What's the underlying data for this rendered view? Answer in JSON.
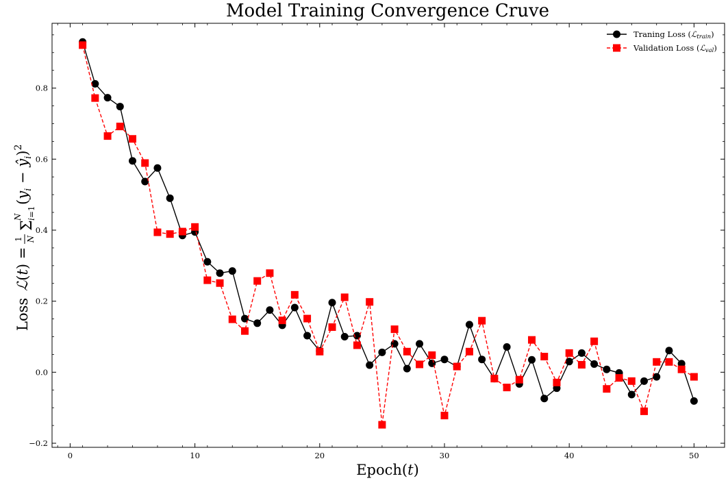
{
  "chart_data": {
    "type": "line",
    "title": "Model Training Convergence Cruve",
    "xlabel": "Epoch(t)",
    "ylabel": "Loss  ℒ(t) = 1/N Σᵢ₌₁ᴺ (yᵢ − ŷᵢ)²",
    "xlim": [
      -1.45,
      52.45
    ],
    "ylim": [
      -0.2115,
      0.9825
    ],
    "xticks": [
      0,
      10,
      20,
      30,
      40,
      50
    ],
    "yticks": [
      -0.2,
      0.0,
      0.2,
      0.4,
      0.6,
      0.8
    ],
    "xtick_labels": [
      "0",
      "10",
      "20",
      "30",
      "40",
      "50"
    ],
    "ytick_labels": [
      "−0.2",
      "0.0",
      "0.2",
      "0.4",
      "0.6",
      "0.8"
    ],
    "grid": false,
    "legend_position": "top-right",
    "x": [
      1,
      2,
      3,
      4,
      5,
      6,
      7,
      8,
      9,
      10,
      11,
      12,
      13,
      14,
      15,
      16,
      17,
      18,
      19,
      20,
      21,
      22,
      23,
      24,
      25,
      26,
      27,
      28,
      29,
      30,
      31,
      32,
      33,
      34,
      35,
      36,
      37,
      38,
      39,
      40,
      41,
      42,
      43,
      44,
      45,
      46,
      47,
      48,
      49,
      50
    ],
    "series": [
      {
        "name": "Traning Loss (ℒtrain)",
        "color": "#000000",
        "line_style": "solid",
        "marker": "circle",
        "values": [
          0.93,
          0.812,
          0.773,
          0.748,
          0.595,
          0.537,
          0.575,
          0.49,
          0.385,
          0.395,
          0.311,
          0.279,
          0.285,
          0.151,
          0.138,
          0.175,
          0.132,
          0.182,
          0.103,
          0.06,
          0.196,
          0.1,
          0.103,
          0.02,
          0.056,
          0.08,
          0.01,
          0.08,
          0.025,
          0.036,
          0.016,
          0.134,
          0.036,
          -0.018,
          0.071,
          -0.033,
          0.035,
          -0.074,
          -0.045,
          0.03,
          0.054,
          0.023,
          0.008,
          -0.002,
          -0.063,
          -0.025,
          -0.013,
          0.061,
          0.024,
          -0.081
        ]
      },
      {
        "name": "Validation Loss (ℒval)",
        "color": "#ff0000",
        "line_style": "dashed",
        "marker": "square",
        "values": [
          0.921,
          0.772,
          0.665,
          0.692,
          0.657,
          0.589,
          0.394,
          0.389,
          0.396,
          0.409,
          0.259,
          0.251,
          0.149,
          0.116,
          0.257,
          0.279,
          0.146,
          0.218,
          0.151,
          0.058,
          0.127,
          0.211,
          0.076,
          0.198,
          -0.148,
          0.121,
          0.058,
          0.022,
          0.048,
          -0.122,
          0.016,
          0.058,
          0.145,
          -0.018,
          -0.043,
          -0.021,
          0.091,
          0.044,
          -0.029,
          0.054,
          0.021,
          0.087,
          -0.047,
          -0.016,
          -0.025,
          -0.11,
          0.029,
          0.029,
          0.008,
          -0.013
        ]
      }
    ]
  },
  "text": {
    "title": "Model Training Convergence Cruve",
    "xlabel_main": "Epoch(",
    "xlabel_var": "t",
    "xlabel_close": ")",
    "ylabel_word": "Loss",
    "legend_train_prefix": "Traning Loss (",
    "legend_train_sym": "ℒ",
    "legend_train_sub": "train",
    "legend_val_prefix": "Validation Loss (",
    "legend_val_sym": "ℒ",
    "legend_val_sub": "val",
    "legend_close": ")"
  }
}
